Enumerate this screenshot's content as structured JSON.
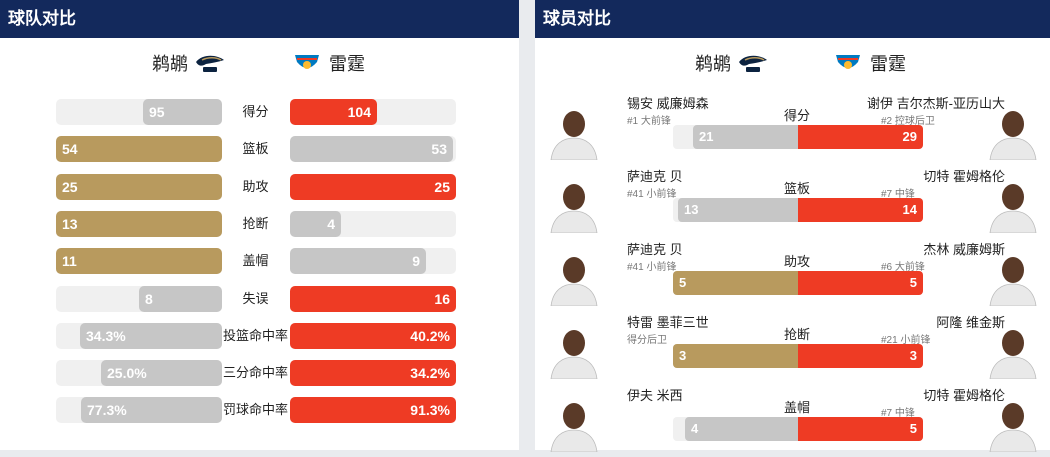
{
  "team_panel": {
    "title": "球队对比",
    "home": "鹈鹕",
    "away": "雷霆",
    "stats": [
      {
        "label": "得分",
        "home": "95",
        "away": "104",
        "home_frac": 0.476,
        "away_frac": 0.524,
        "home_win": false,
        "away_win": true
      },
      {
        "label": "篮板",
        "home": "54",
        "away": "53",
        "home_frac": 1.0,
        "away_frac": 0.98,
        "home_win": true,
        "away_win": false
      },
      {
        "label": "助攻",
        "home": "25",
        "away": "25",
        "home_frac": 1.0,
        "away_frac": 1.0,
        "home_win": true,
        "away_win": true
      },
      {
        "label": "抢断",
        "home": "13",
        "away": "4",
        "home_frac": 1.0,
        "away_frac": 0.31,
        "home_win": true,
        "away_win": false
      },
      {
        "label": "盖帽",
        "home": "11",
        "away": "9",
        "home_frac": 1.0,
        "away_frac": 0.82,
        "home_win": true,
        "away_win": false
      },
      {
        "label": "失误",
        "home": "8",
        "away": "16",
        "home_frac": 0.5,
        "away_frac": 1.0,
        "home_win": false,
        "away_win": true
      },
      {
        "label": "投篮命中率",
        "home": "34.3%",
        "away": "40.2%",
        "home_frac": 0.853,
        "away_frac": 1.0,
        "home_win": false,
        "away_win": true
      },
      {
        "label": "三分命中率",
        "home": "25.0%",
        "away": "34.2%",
        "home_frac": 0.731,
        "away_frac": 1.0,
        "home_win": false,
        "away_win": true
      },
      {
        "label": "罚球命中率",
        "home": "77.3%",
        "away": "91.3%",
        "home_frac": 0.847,
        "away_frac": 1.0,
        "home_win": false,
        "away_win": true
      }
    ]
  },
  "player_panel": {
    "title": "球员对比",
    "home": "鹈鹕",
    "away": "雷霆",
    "rows": [
      {
        "stat": "得分",
        "home_name": "锡安 威廉姆森",
        "home_sub": "#1 大前锋",
        "away_name": "谢伊 吉尔杰斯-亚历山大",
        "away_sub": "#2 控球后卫",
        "home_val": "21",
        "away_val": "29",
        "home_frac": 0.42,
        "away_frac": 0.58,
        "home_win": false,
        "away_win": true
      },
      {
        "stat": "篮板",
        "home_name": "萨迪克 贝",
        "home_sub": "#41 小前锋",
        "away_name": "切特 霍姆格伦",
        "away_sub": "#7 中锋",
        "home_val": "13",
        "away_val": "14",
        "home_frac": 0.48,
        "away_frac": 0.52,
        "home_win": false,
        "away_win": true
      },
      {
        "stat": "助攻",
        "home_name": "萨迪克 贝",
        "home_sub": "#41 小前锋",
        "away_name": "杰林 威廉姆斯",
        "away_sub": "#6 大前锋",
        "home_val": "5",
        "away_val": "5",
        "home_frac": 0.5,
        "away_frac": 0.5,
        "home_win": true,
        "away_win": true
      },
      {
        "stat": "抢断",
        "home_name": "特雷 墨菲三世",
        "home_sub": "得分后卫",
        "away_name": "阿隆 维金斯",
        "away_sub": "#21 小前锋",
        "home_val": "3",
        "away_val": "3",
        "home_frac": 0.5,
        "away_frac": 0.5,
        "home_win": true,
        "away_win": true
      },
      {
        "stat": "盖帽",
        "home_name": "伊夫 米西",
        "home_sub": "",
        "away_name": "切特 霍姆格伦",
        "away_sub": "#7 中锋",
        "home_val": "4",
        "away_val": "5",
        "home_frac": 0.45,
        "away_frac": 0.55,
        "home_win": false,
        "away_win": true
      }
    ]
  },
  "colors": {
    "header": "#13295c",
    "home_accent": "#b89a5e",
    "away_accent": "#ee3b24",
    "neutral": "#c6c6c6",
    "track": "#f0f0f0"
  }
}
